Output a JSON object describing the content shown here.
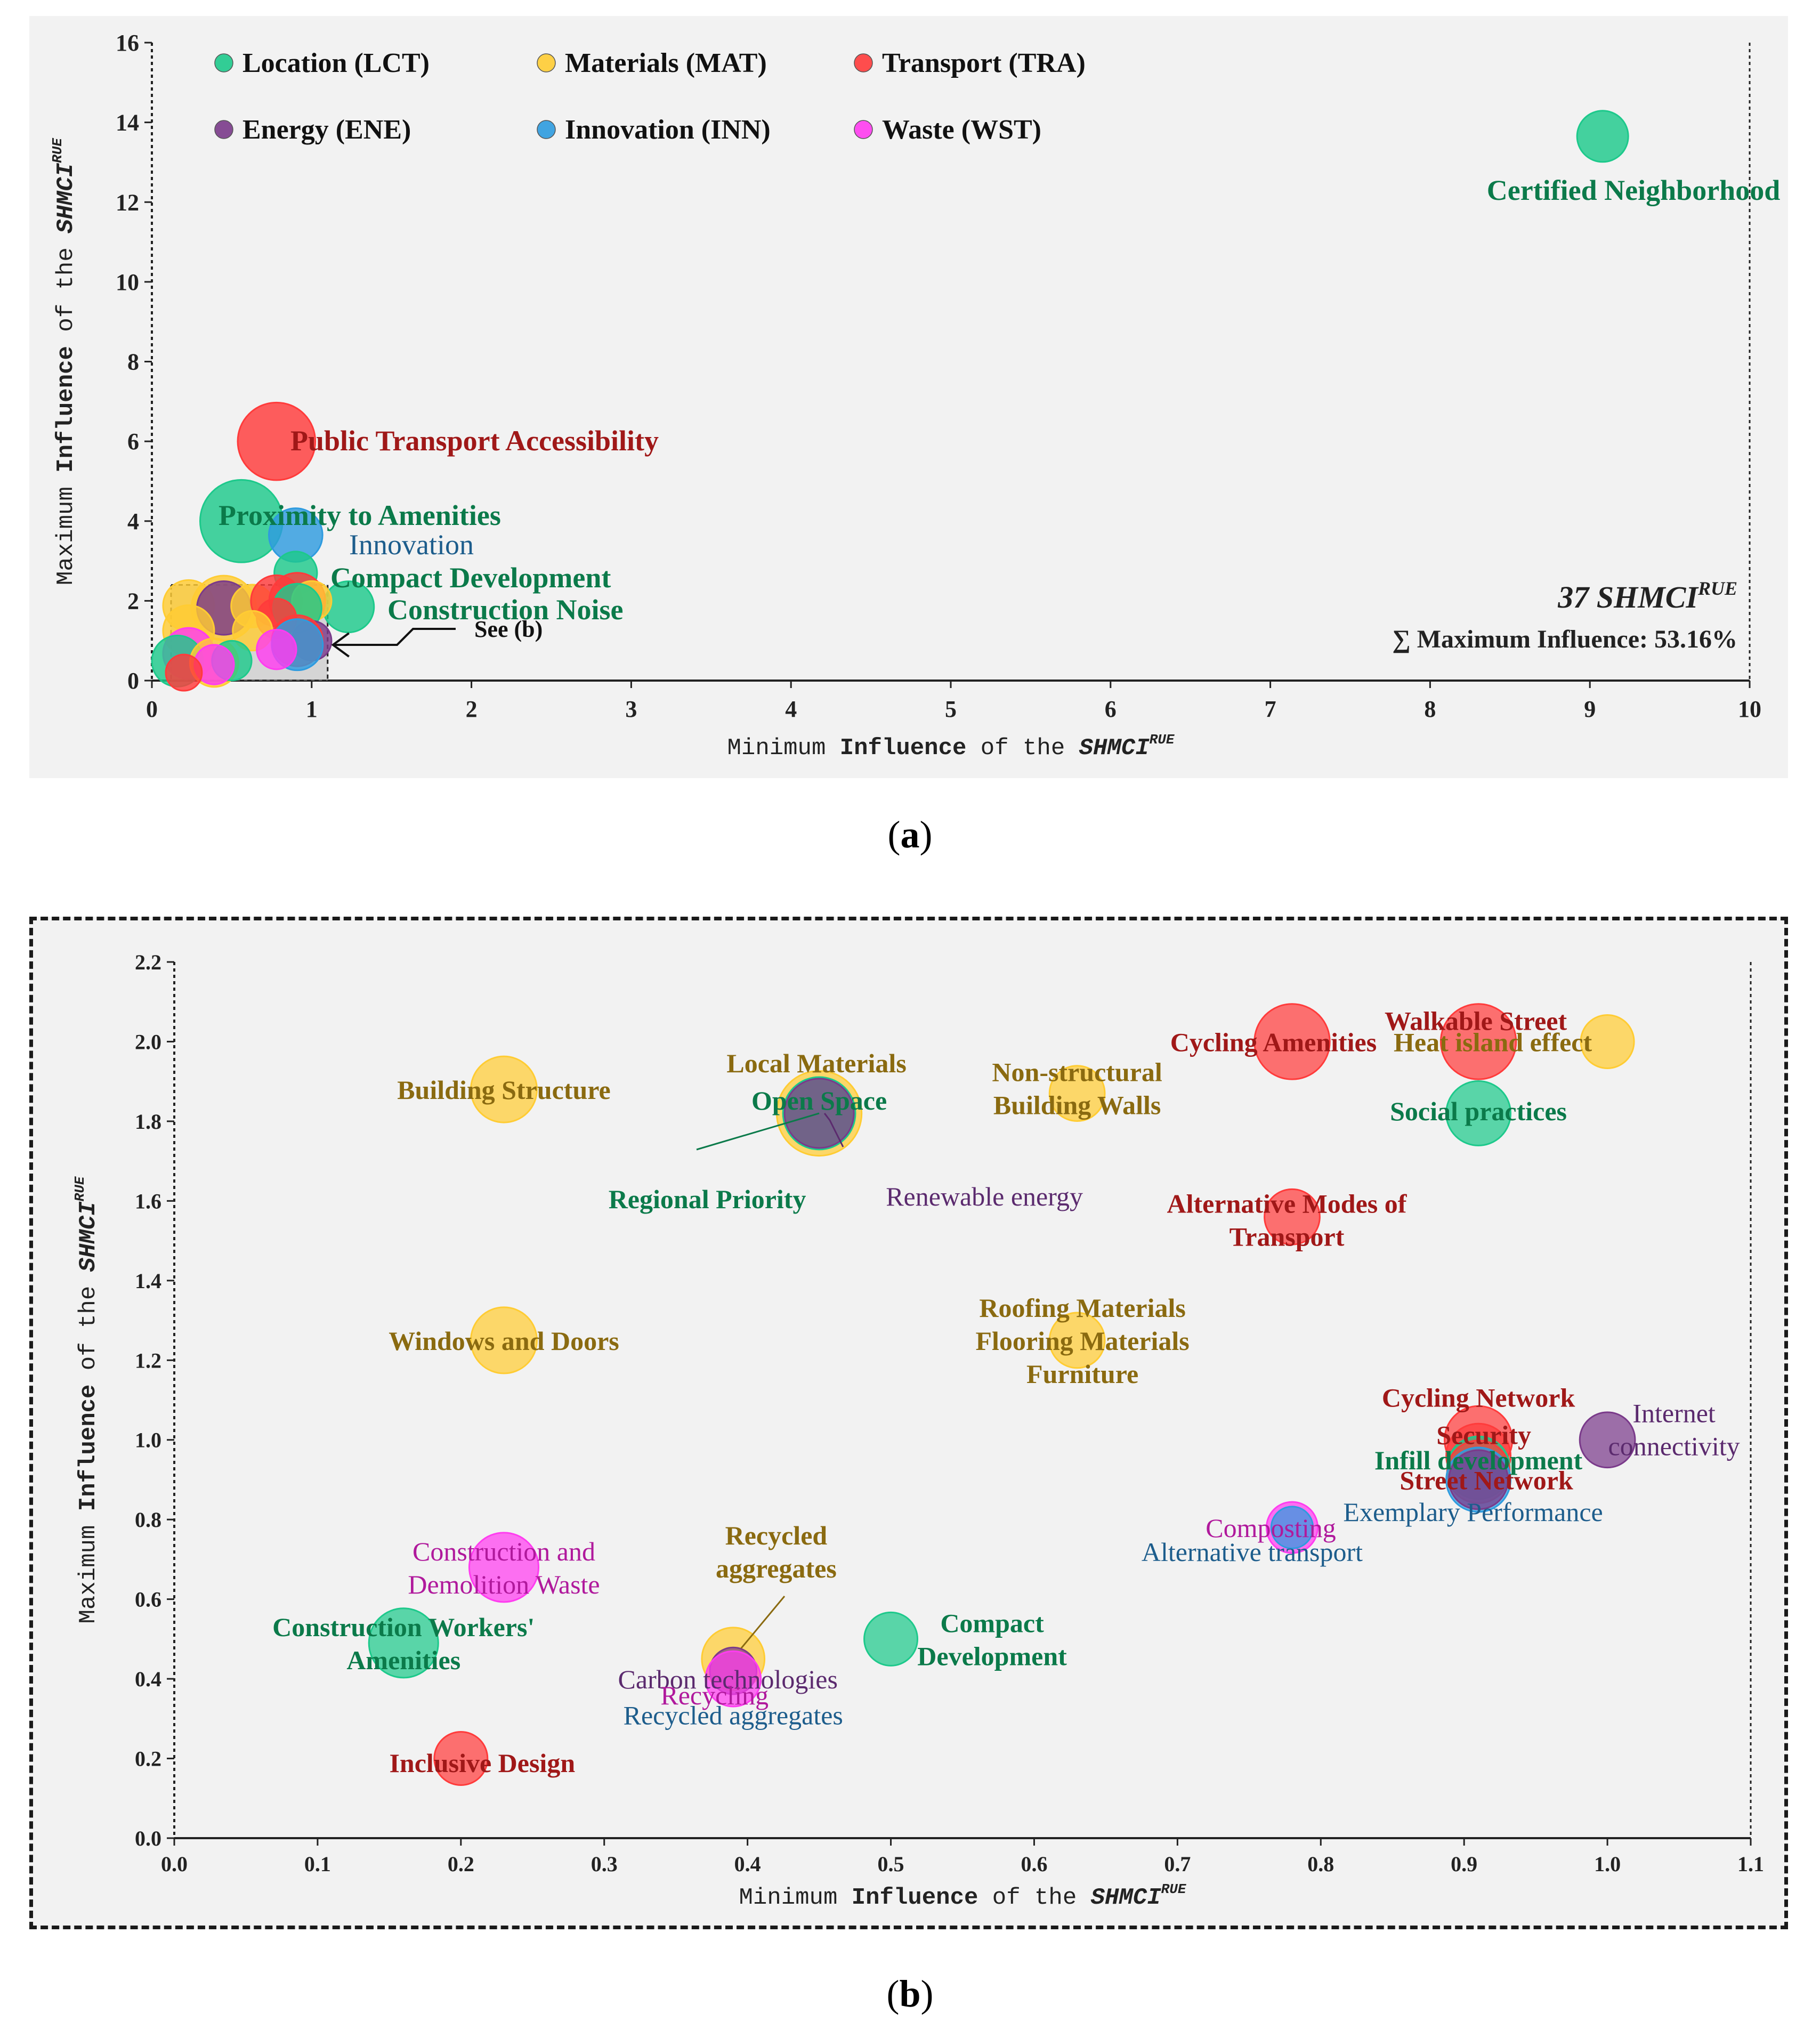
{
  "colors": {
    "LCT": "#1dc98b",
    "MAT": "#ffcc33",
    "TRA": "#ff3b3b",
    "ENE": "#7a3a8a",
    "INN": "#2e9bdf",
    "WST": "#ff3cf0",
    "label_LCT": "#0b7a4a",
    "label_MAT": "#8a6a10",
    "label_TRA": "#a01818",
    "label_ENE": "#5b2a6e",
    "label_INN": "#1d5d8c",
    "label_WST": "#b0199c"
  },
  "captions": {
    "a": "a",
    "b": "b"
  },
  "chart_data": [
    {
      "type": "scatter",
      "id": "a",
      "xlabel_prefix": "Minimum",
      "xlabel_bold": "Influence",
      "xlabel_mid": "of the",
      "ylabel_prefix": "Maximum",
      "ylabel_bold": "Influence",
      "ylabel_mid": "of the",
      "axis_symbol": "SHMCI",
      "axis_superscript": "RUE",
      "xlim": [
        0,
        10
      ],
      "ylim": [
        0,
        16
      ],
      "xticks": [
        "0",
        "1",
        "2",
        "3",
        "4",
        "5",
        "6",
        "7",
        "8",
        "9",
        "10"
      ],
      "yticks": [
        "0",
        "2",
        "4",
        "6",
        "8",
        "10",
        "12",
        "14",
        "16"
      ],
      "legend": [
        {
          "cat": "LCT",
          "label": "Location (LCT)"
        },
        {
          "cat": "MAT",
          "label": "Materials (MAT)"
        },
        {
          "cat": "TRA",
          "label": "Transport (TRA)"
        },
        {
          "cat": "ENE",
          "label": "Energy (ENE)"
        },
        {
          "cat": "INN",
          "label": "Innovation (INN)"
        },
        {
          "cat": "WST",
          "label": "Waste (WST)"
        }
      ],
      "summary_count": "37",
      "summary_symbol": "SHMCI",
      "summary_superscript": "RUE",
      "summary_line": "∑ Maximum  Influence: 53.16%",
      "zoom_note": "See (b)",
      "points": [
        {
          "x": 9.08,
          "y": 13.65,
          "cat": "LCT",
          "size": 1.0,
          "label": "Certified Neighborhood",
          "bold": true
        },
        {
          "x": 0.78,
          "y": 6.0,
          "cat": "TRA",
          "size": 2.3,
          "label": "Public Transport Accessibility",
          "bold": true
        },
        {
          "x": 0.56,
          "y": 4.0,
          "cat": "LCT",
          "size": 2.6,
          "label": "Proximity to Amenities",
          "bold": true
        },
        {
          "x": 0.9,
          "y": 3.65,
          "cat": "INN",
          "size": 1.1,
          "label": "Innovation",
          "bold": false
        },
        {
          "x": 0.9,
          "y": 2.7,
          "cat": "LCT",
          "size": 0.7,
          "label": "Compact Development",
          "bold": true
        },
        {
          "x": 1.23,
          "y": 1.85,
          "cat": "LCT",
          "size": 1.0,
          "label": "Construction Noise",
          "bold": true
        },
        {
          "x": 0.23,
          "y": 1.88,
          "cat": "MAT",
          "size": 1.0,
          "label": "",
          "bold": false
        },
        {
          "x": 0.45,
          "y": 1.82,
          "cat": "MAT",
          "size": 1.6,
          "label": "",
          "bold": false
        },
        {
          "x": 0.45,
          "y": 1.82,
          "cat": "ENE",
          "size": 1.1,
          "label": "",
          "bold": false
        },
        {
          "x": 0.63,
          "y": 1.87,
          "cat": "MAT",
          "size": 0.7,
          "label": "",
          "bold": false
        },
        {
          "x": 0.78,
          "y": 2.0,
          "cat": "TRA",
          "size": 1.0,
          "label": "",
          "bold": false
        },
        {
          "x": 0.91,
          "y": 2.0,
          "cat": "TRA",
          "size": 1.2,
          "label": "",
          "bold": false
        },
        {
          "x": 1.0,
          "y": 2.0,
          "cat": "MAT",
          "size": 0.6,
          "label": "",
          "bold": false
        },
        {
          "x": 0.91,
          "y": 1.82,
          "cat": "LCT",
          "size": 0.9,
          "label": "",
          "bold": false
        },
        {
          "x": 0.78,
          "y": 1.56,
          "cat": "TRA",
          "size": 0.6,
          "label": "",
          "bold": false
        },
        {
          "x": 0.23,
          "y": 1.25,
          "cat": "MAT",
          "size": 1.0,
          "label": "",
          "bold": false
        },
        {
          "x": 0.63,
          "y": 1.25,
          "cat": "MAT",
          "size": 0.6,
          "label": "",
          "bold": false
        },
        {
          "x": 1.0,
          "y": 1.0,
          "cat": "ENE",
          "size": 0.6,
          "label": "",
          "bold": false
        },
        {
          "x": 0.91,
          "y": 1.0,
          "cat": "TRA",
          "size": 1.0,
          "label": "",
          "bold": false
        },
        {
          "x": 0.91,
          "y": 0.9,
          "cat": "INN",
          "size": 1.0,
          "label": "",
          "bold": false
        },
        {
          "x": 0.78,
          "y": 0.78,
          "cat": "WST",
          "size": 0.6,
          "label": "",
          "bold": false
        },
        {
          "x": 0.23,
          "y": 0.68,
          "cat": "WST",
          "size": 1.0,
          "label": "",
          "bold": false
        },
        {
          "x": 0.16,
          "y": 0.49,
          "cat": "LCT",
          "size": 1.0,
          "label": "",
          "bold": false
        },
        {
          "x": 0.39,
          "y": 0.45,
          "cat": "MAT",
          "size": 0.9,
          "label": "",
          "bold": false
        },
        {
          "x": 0.5,
          "y": 0.5,
          "cat": "LCT",
          "size": 0.6,
          "label": "",
          "bold": false
        },
        {
          "x": 0.39,
          "y": 0.4,
          "cat": "WST",
          "size": 0.6,
          "label": "",
          "bold": false
        },
        {
          "x": 0.2,
          "y": 0.2,
          "cat": "TRA",
          "size": 0.5,
          "label": "",
          "bold": false
        }
      ]
    },
    {
      "type": "scatter",
      "id": "b",
      "xlabel_prefix": "Minimum",
      "xlabel_bold": "Influence",
      "xlabel_mid": "of the",
      "ylabel_prefix": "Maximum",
      "ylabel_bold": "Influence",
      "ylabel_mid": "of the",
      "axis_symbol": "SHMCI",
      "axis_superscript": "RUE",
      "xlim": [
        0,
        1.1
      ],
      "ylim": [
        0,
        2.2
      ],
      "xticks": [
        "0.0",
        "0.1",
        "0.2",
        "0.3",
        "0.4",
        "0.5",
        "0.6",
        "0.7",
        "0.8",
        "0.9",
        "1.0",
        "1.1"
      ],
      "yticks": [
        "0.0",
        "0.2",
        "0.4",
        "0.6",
        "0.8",
        "1.0",
        "1.2",
        "1.4",
        "1.6",
        "1.8",
        "2.0",
        "2.2"
      ],
      "points": [
        {
          "x": 0.23,
          "y": 1.88,
          "cat": "MAT",
          "size": 1.0
        },
        {
          "x": 0.45,
          "y": 1.82,
          "cat": "MAT",
          "size": 1.65
        },
        {
          "x": 0.45,
          "y": 1.82,
          "cat": "LCT",
          "size": 1.2
        },
        {
          "x": 0.45,
          "y": 1.82,
          "cat": "ENE",
          "size": 1.1
        },
        {
          "x": 0.63,
          "y": 1.87,
          "cat": "MAT",
          "size": 0.7
        },
        {
          "x": 0.78,
          "y": 2.0,
          "cat": "TRA",
          "size": 1.3
        },
        {
          "x": 0.91,
          "y": 2.0,
          "cat": "TRA",
          "size": 1.3
        },
        {
          "x": 1.0,
          "y": 2.0,
          "cat": "MAT",
          "size": 0.65
        },
        {
          "x": 0.91,
          "y": 1.82,
          "cat": "LCT",
          "size": 0.95
        },
        {
          "x": 0.78,
          "y": 1.56,
          "cat": "TRA",
          "size": 0.7
        },
        {
          "x": 0.23,
          "y": 1.25,
          "cat": "MAT",
          "size": 1.0
        },
        {
          "x": 0.63,
          "y": 1.25,
          "cat": "MAT",
          "size": 0.7
        },
        {
          "x": 0.91,
          "y": 1.0,
          "cat": "TRA",
          "size": 1.05
        },
        {
          "x": 0.91,
          "y": 0.96,
          "cat": "TRA",
          "size": 0.95
        },
        {
          "x": 0.91,
          "y": 0.93,
          "cat": "LCT",
          "size": 0.9
        },
        {
          "x": 0.91,
          "y": 0.92,
          "cat": "TRA",
          "size": 0.9
        },
        {
          "x": 0.91,
          "y": 0.9,
          "cat": "INN",
          "size": 0.95
        },
        {
          "x": 0.91,
          "y": 0.9,
          "cat": "ENE",
          "size": 0.8
        },
        {
          "x": 1.0,
          "y": 1.0,
          "cat": "ENE",
          "size": 0.7
        },
        {
          "x": 0.78,
          "y": 0.78,
          "cat": "WST",
          "size": 0.6
        },
        {
          "x": 0.78,
          "y": 0.78,
          "cat": "INN",
          "size": 0.4
        },
        {
          "x": 0.23,
          "y": 0.68,
          "cat": "WST",
          "size": 1.1
        },
        {
          "x": 0.16,
          "y": 0.49,
          "cat": "LCT",
          "size": 1.1
        },
        {
          "x": 0.39,
          "y": 0.45,
          "cat": "MAT",
          "size": 0.9
        },
        {
          "x": 0.39,
          "y": 0.42,
          "cat": "ENE",
          "size": 0.5
        },
        {
          "x": 0.39,
          "y": 0.4,
          "cat": "WST",
          "size": 0.7
        },
        {
          "x": 0.5,
          "y": 0.5,
          "cat": "LCT",
          "size": 0.65
        },
        {
          "x": 0.2,
          "y": 0.2,
          "cat": "TRA",
          "size": 0.65
        }
      ],
      "annotations": [
        {
          "lines": [
            "Building Structure"
          ],
          "cat": "MAT",
          "bold": true,
          "ax": 0.23,
          "ay": 1.88,
          "dx": 0,
          "dy": 0
        },
        {
          "lines": [
            "Local Materials"
          ],
          "cat": "MAT",
          "bold": true,
          "ax": 0.45,
          "ay": 1.82,
          "dx": -5,
          "dy": -95
        },
        {
          "lines": [
            "Open Space"
          ],
          "cat": "LCT",
          "bold": true,
          "ax": 0.45,
          "ay": 1.82,
          "dx": 0,
          "dy": -25
        },
        {
          "lines": [
            "Regional Priority"
          ],
          "cat": "LCT",
          "bold": true,
          "ax": 0.45,
          "ay": 1.82,
          "dx": -210,
          "dy": 160
        },
        {
          "lines": [
            "Renewable energy"
          ],
          "cat": "ENE",
          "bold": false,
          "ax": 0.45,
          "ay": 1.82,
          "dx": 310,
          "dy": 155
        },
        {
          "lines": [
            "Non-structural",
            "Building Walls"
          ],
          "cat": "MAT",
          "bold": true,
          "ax": 0.63,
          "ay": 1.87,
          "dx": 0,
          "dy": -10
        },
        {
          "lines": [
            "Cycling Amenities"
          ],
          "cat": "TRA",
          "bold": true,
          "ax": 0.78,
          "ay": 2.0,
          "dx": -35,
          "dy": 0
        },
        {
          "lines": [
            "Walkable Street"
          ],
          "cat": "TRA",
          "bold": true,
          "ax": 0.91,
          "ay": 2.0,
          "dx": -5,
          "dy": -40
        },
        {
          "lines": [
            "Heat island effect"
          ],
          "cat": "MAT",
          "bold": true,
          "ax": 1.0,
          "ay": 2.0,
          "dx": -215,
          "dy": 0
        },
        {
          "lines": [
            "Social practices"
          ],
          "cat": "LCT",
          "bold": true,
          "ax": 0.91,
          "ay": 1.82,
          "dx": 0,
          "dy": -5
        },
        {
          "lines": [
            "Alternative Modes of",
            "Transport"
          ],
          "cat": "TRA",
          "bold": true,
          "ax": 0.78,
          "ay": 1.56,
          "dx": -10,
          "dy": 5
        },
        {
          "lines": [
            "Windows and Doors"
          ],
          "cat": "MAT",
          "bold": true,
          "ax": 0.23,
          "ay": 1.25,
          "dx": 0,
          "dy": 0
        },
        {
          "lines": [
            "Roofing Materials",
            "Flooring Materials",
            "Furniture"
          ],
          "cat": "MAT",
          "bold": true,
          "ax": 0.63,
          "ay": 1.25,
          "dx": 10,
          "dy": 0
        },
        {
          "lines": [
            "Cycling Network"
          ],
          "cat": "TRA",
          "bold": true,
          "ax": 0.91,
          "ay": 1.0,
          "dx": 0,
          "dy": -80
        },
        {
          "lines": [
            "Security"
          ],
          "cat": "TRA",
          "bold": true,
          "ax": 0.91,
          "ay": 1.0,
          "dx": 10,
          "dy": -10
        },
        {
          "lines": [
            "Internet",
            "connectivity"
          ],
          "cat": "ENE",
          "bold": false,
          "ax": 1.0,
          "ay": 1.0,
          "dx": 125,
          "dy": -20
        },
        {
          "lines": [
            "Infill development"
          ],
          "cat": "LCT",
          "bold": true,
          "ax": 0.91,
          "ay": 0.95,
          "dx": 0,
          "dy": 0
        },
        {
          "lines": [
            "Street Network"
          ],
          "cat": "TRA",
          "bold": true,
          "ax": 0.91,
          "ay": 0.9,
          "dx": 15,
          "dy": 0
        },
        {
          "lines": [
            "Exemplary Performance"
          ],
          "cat": "INN",
          "bold": false,
          "ax": 0.91,
          "ay": 0.82,
          "dx": -10,
          "dy": 0
        },
        {
          "lines": [
            "Composting"
          ],
          "cat": "WST",
          "bold": false,
          "ax": 0.78,
          "ay": 0.78,
          "dx": -40,
          "dy": 0
        },
        {
          "lines": [
            "Alternative transport"
          ],
          "cat": "INN",
          "bold": false,
          "ax": 0.78,
          "ay": 0.72,
          "dx": -75,
          "dy": 0
        },
        {
          "lines": [
            "Construction and",
            "Demolition  Waste"
          ],
          "cat": "WST",
          "bold": false,
          "ax": 0.23,
          "ay": 0.68,
          "dx": 0,
          "dy": 0
        },
        {
          "lines": [
            "Construction Workers'",
            "Amenities"
          ],
          "cat": "LCT",
          "bold": true,
          "ax": 0.16,
          "ay": 0.49,
          "dx": 0,
          "dy": 0
        },
        {
          "lines": [
            "Recycled",
            "aggregates"
          ],
          "cat": "MAT",
          "bold": true,
          "ax": 0.42,
          "ay": 0.72,
          "dx": 0,
          "dy": 0
        },
        {
          "lines": [
            "Carbon technologies"
          ],
          "cat": "ENE",
          "bold": false,
          "ax": 0.39,
          "ay": 0.4,
          "dx": -10,
          "dy": 0
        },
        {
          "lines": [
            "Recycling"
          ],
          "cat": "WST",
          "bold": false,
          "ax": 0.39,
          "ay": 0.36,
          "dx": -35,
          "dy": 0
        },
        {
          "lines": [
            "Recycled aggregates"
          ],
          "cat": "INN",
          "bold": false,
          "ax": 0.39,
          "ay": 0.31,
          "dx": 0,
          "dy": 0
        },
        {
          "lines": [
            "Compact",
            "Development"
          ],
          "cat": "LCT",
          "bold": true,
          "ax": 0.5,
          "ay": 0.5,
          "dx": 190,
          "dy": 0
        },
        {
          "lines": [
            "Inclusive Design"
          ],
          "cat": "TRA",
          "bold": true,
          "ax": 0.2,
          "ay": 0.19,
          "dx": 40,
          "dy": 0
        }
      ]
    }
  ]
}
